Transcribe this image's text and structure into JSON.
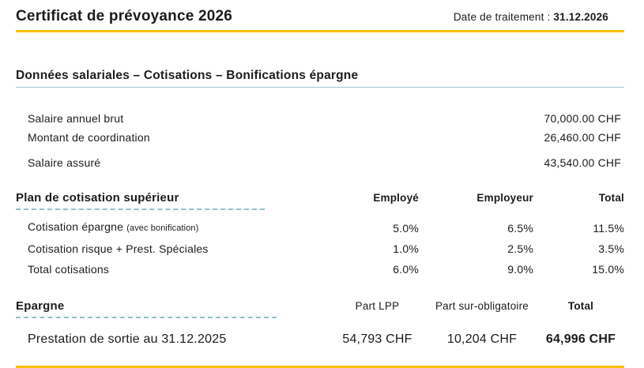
{
  "header": {
    "title": "Certificat de prévoyance 2026",
    "date_label": "Date de traitement :",
    "date_value": "31.12.2026"
  },
  "colors": {
    "accent_gold": "#FFC000",
    "section_underline_blue": "#9fc8d4",
    "dashed_underline_teal": "#8fc1cd",
    "text": "#1c1c1c"
  },
  "salary_section": {
    "title": "Données salariales – Cotisations – Bonifications épargne",
    "rows": [
      {
        "label": "Salaire annuel brut",
        "value": "70,000.00 CHF"
      },
      {
        "label": "Montant de coordination",
        "value": "26,460.00 CHF"
      },
      {
        "label": "Salaire assuré",
        "value": "43,540.00 CHF"
      }
    ]
  },
  "contribution_section": {
    "title": "Plan de cotisation supérieur",
    "columns": {
      "employee": "Employé",
      "employer": "Employeur",
      "total": "Total"
    },
    "rows": [
      {
        "label": "Cotisation épargne",
        "note": "(avec bonification)",
        "employee": "5.0%",
        "employer": "6.5%",
        "total": "11.5%"
      },
      {
        "label": "Cotisation risque + Prest. Spéciales",
        "employee": "1.0%",
        "employer": "2.5%",
        "total": "3.5%"
      },
      {
        "label": "Total cotisations",
        "employee": "6.0%",
        "employer": "9.0%",
        "total": "15.0%"
      }
    ]
  },
  "savings_section": {
    "title": "Epargne",
    "columns": {
      "lpp": "Part LPP",
      "extra": "Part sur-obligatoire",
      "total": "Total"
    },
    "rows": [
      {
        "label": "Prestation de sortie au 31.12.2025",
        "lpp": "54,793 CHF",
        "extra": "10,204 CHF",
        "total": "64,996 CHF"
      }
    ]
  }
}
